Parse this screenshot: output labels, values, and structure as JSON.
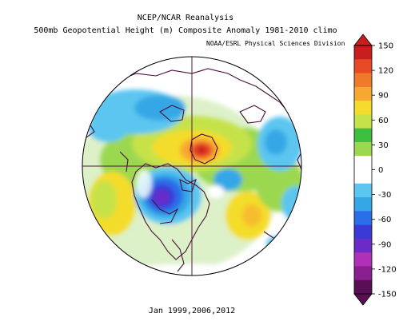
{
  "header": {
    "title": "NCEP/NCAR Reanalysis",
    "subtitle": "500mb Geopotential Height (m) Composite Anomaly 1981-2010 climo",
    "credit": "NOAA/ESRL Physical Sciences Division"
  },
  "footer": {
    "period": "Jan 1999,2006,2012"
  },
  "colorbar": {
    "labels": [
      "150",
      "120",
      "90",
      "60",
      "30",
      "0",
      "-30",
      "-60",
      "-90",
      "-120",
      "-150"
    ],
    "colors": [
      "#5a0f55",
      "#8a1f8f",
      "#b030b8",
      "#6a2bc7",
      "#3a3ad6",
      "#2a6ee8",
      "#35a7e6",
      "#5cc6f0",
      "#ffffff",
      "#ffffff",
      "#9bd84f",
      "#3fbf3f",
      "#c6e24a",
      "#f4dc2c",
      "#f7a830",
      "#f07a2c",
      "#e84a26",
      "#c81e1e"
    ]
  },
  "map": {
    "projection": "north-polar-stereographic",
    "center_features": [
      {
        "name": "positive-anomaly-greenland",
        "sign": "positive"
      },
      {
        "name": "negative-anomaly-north-america",
        "sign": "negative"
      },
      {
        "name": "negative-anomaly-siberia",
        "sign": "negative"
      },
      {
        "name": "negative-anomaly-europe",
        "sign": "negative"
      }
    ]
  }
}
